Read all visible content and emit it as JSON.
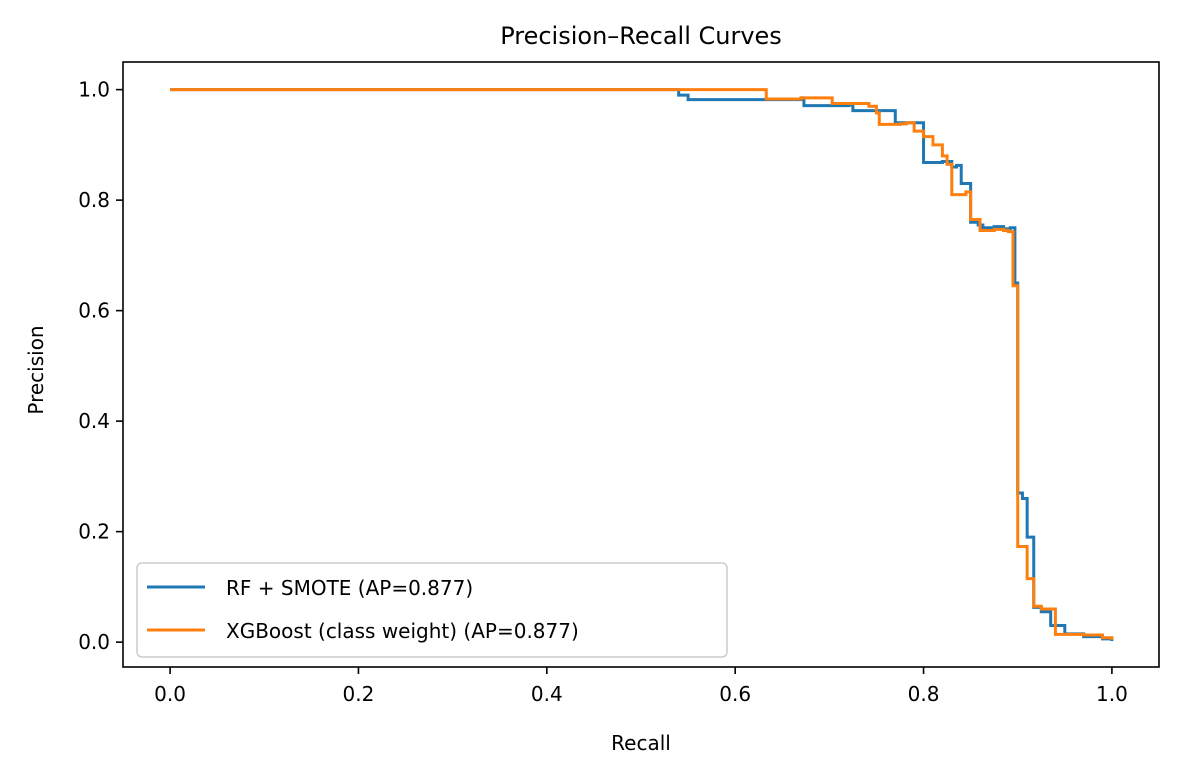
{
  "chart_data": {
    "type": "line",
    "title": "Precision–Recall Curves",
    "xlabel": "Recall",
    "ylabel": "Precision",
    "xlim": [
      -0.05,
      1.05
    ],
    "ylim": [
      -0.045,
      1.05
    ],
    "xticks": [
      0.0,
      0.2,
      0.4,
      0.6,
      0.8,
      1.0
    ],
    "xtick_labels": [
      "0.0",
      "0.2",
      "0.4",
      "0.6",
      "0.8",
      "1.0"
    ],
    "yticks": [
      0.0,
      0.2,
      0.4,
      0.6,
      0.8,
      1.0
    ],
    "ytick_labels": [
      "0.0",
      "0.2",
      "0.4",
      "0.6",
      "0.8",
      "1.0"
    ],
    "grid": false,
    "legend_position": "lower-left",
    "series": [
      {
        "name": "RF + SMOTE (AP=0.877)",
        "color": "#1f77b4",
        "step": true,
        "x": [
          0.0,
          0.53,
          0.54,
          0.55,
          0.67,
          0.673,
          0.72,
          0.725,
          0.765,
          0.77,
          0.795,
          0.8,
          0.82,
          0.83,
          0.835,
          0.84,
          0.845,
          0.85,
          0.858,
          0.863,
          0.875,
          0.885,
          0.892,
          0.896,
          0.897,
          0.9,
          0.905,
          0.91,
          0.917,
          0.925,
          0.935,
          0.95,
          0.97,
          0.99,
          1.0
        ],
        "y": [
          1.0,
          1.0,
          0.99,
          0.982,
          0.985,
          0.971,
          0.972,
          0.962,
          0.962,
          0.94,
          0.94,
          0.868,
          0.87,
          0.86,
          0.863,
          0.83,
          0.83,
          0.76,
          0.755,
          0.75,
          0.752,
          0.748,
          0.75,
          0.75,
          0.65,
          0.27,
          0.26,
          0.19,
          0.063,
          0.055,
          0.03,
          0.015,
          0.01,
          0.006,
          0.002
        ]
      },
      {
        "name": "XGBoost (class weight) (AP=0.877)",
        "color": "#ff7f0e",
        "step": true,
        "x": [
          0.0,
          0.632,
          0.633,
          0.67,
          0.703,
          0.742,
          0.75,
          0.753,
          0.775,
          0.782,
          0.79,
          0.8,
          0.81,
          0.82,
          0.825,
          0.83,
          0.84,
          0.845,
          0.85,
          0.86,
          0.865,
          0.875,
          0.885,
          0.89,
          0.895,
          0.9,
          0.91,
          0.917,
          0.925,
          0.935,
          0.94,
          0.97,
          0.99,
          1.0
        ],
        "y": [
          1.0,
          1.0,
          0.983,
          0.985,
          0.975,
          0.97,
          0.958,
          0.937,
          0.938,
          0.94,
          0.925,
          0.915,
          0.9,
          0.88,
          0.865,
          0.81,
          0.81,
          0.815,
          0.765,
          0.745,
          0.745,
          0.747,
          0.745,
          0.743,
          0.645,
          0.173,
          0.115,
          0.065,
          0.06,
          0.06,
          0.014,
          0.013,
          0.008,
          0.004
        ]
      }
    ]
  }
}
